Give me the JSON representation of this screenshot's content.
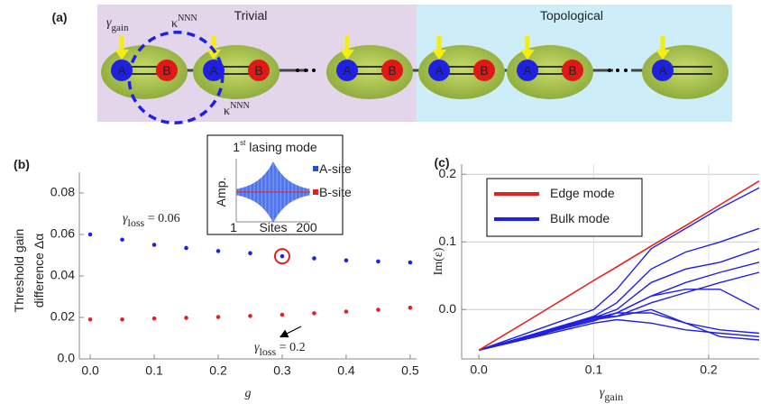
{
  "panel_a": {
    "panel_label": "(a)",
    "trivial": "Trivial",
    "topological": "Topological",
    "gamma": "γ",
    "gamma_sub": "gain",
    "kappa": "κ",
    "kappa_sup": "NNN",
    "site_a": "A",
    "site_b": "B"
  },
  "chart_data": [
    {
      "type": "scatter",
      "panel_label": "(b)",
      "y_label": [
        "Threshold gain",
        "difference Δα"
      ],
      "x_label": "g",
      "x": [
        0,
        0.05,
        0.1,
        0.15,
        0.2,
        0.25,
        0.3,
        0.35,
        0.4,
        0.45,
        0.5
      ],
      "series": [
        {
          "color": "#1f1fe6",
          "values": [
            0.06,
            0.0575,
            0.055,
            0.0535,
            0.052,
            0.051,
            0.0495,
            0.0485,
            0.0475,
            0.047,
            0.0465
          ]
        },
        {
          "color": "#e62020",
          "values": [
            0.019,
            0.019,
            0.0195,
            0.0198,
            0.0202,
            0.0207,
            0.0213,
            0.022,
            0.0228,
            0.0237,
            0.0247
          ]
        }
      ],
      "annotations": [
        {
          "symbol": "γ",
          "sub": "loss",
          "text": " = 0.06",
          "color": "#1f1fe6"
        },
        {
          "symbol": "γ",
          "sub": "loss",
          "text": " = 0.2",
          "color": "#e62020"
        }
      ],
      "xlim": [
        -0.017,
        0.51
      ],
      "ylim": [
        0,
        0.09
      ],
      "xticks": [
        {
          "value": 0,
          "label": "0.0"
        },
        0.1,
        0.2,
        0.3,
        0.4,
        0.5
      ],
      "yticks": [
        {
          "value": 0,
          "label": "0.0"
        },
        0.02,
        0.04,
        0.06,
        0.08
      ],
      "inset": {
        "title": "1",
        "title_sup": "st",
        "title_rest": " lasing mode",
        "y_label": "Amp.",
        "x_label": "Sites",
        "xticks": [
          1,
          200
        ],
        "series": [
          {
            "name": "A-site",
            "color": "#1f4fe6"
          },
          {
            "name": "B-site",
            "color": "#e62020"
          }
        ]
      }
    },
    {
      "type": "line",
      "panel_label": "(c)",
      "y_label": "Im(ε)",
      "x_label": "γ",
      "x_label_sub": "gain",
      "x": [
        0,
        0.05,
        0.1,
        0.12,
        0.15,
        0.18,
        0.21,
        0.244
      ],
      "series": [
        {
          "name": "Edge mode",
          "color": "#e62020",
          "values": [
            -0.06,
            -0.009,
            0.043,
            0.063,
            0.094,
            0.124,
            0.155,
            0.19
          ]
        },
        {
          "name": "Bulk mode",
          "color": "#1f1fe6",
          "lines": [
            [
              -0.06,
              -0.03,
              0.0,
              0.03,
              0.09,
              0.12,
              0.15,
              0.18
            ],
            [
              -0.06,
              -0.035,
              -0.01,
              0.01,
              0.06,
              0.085,
              0.1,
              0.12
            ],
            [
              -0.06,
              -0.036,
              -0.012,
              0.0,
              0.04,
              0.06,
              0.07,
              0.09
            ],
            [
              -0.06,
              -0.036,
              -0.013,
              -0.005,
              0.02,
              0.04,
              0.055,
              0.07
            ],
            [
              -0.06,
              -0.037,
              -0.015,
              -0.01,
              0.01,
              0.025,
              0.04,
              0.055
            ],
            [
              -0.06,
              -0.037,
              -0.015,
              -0.005,
              0.02,
              0.03,
              0.03,
              0.0
            ],
            [
              -0.06,
              -0.038,
              -0.017,
              -0.005,
              -0.005,
              -0.02,
              -0.03,
              -0.035
            ],
            [
              -0.06,
              -0.04,
              -0.01,
              -0.01,
              0.0,
              -0.02,
              -0.04,
              -0.045
            ],
            [
              -0.06,
              -0.04,
              -0.02,
              -0.015,
              -0.02,
              -0.03,
              -0.035,
              -0.04
            ]
          ]
        }
      ],
      "xlim": [
        -0.015,
        0.244
      ],
      "ylim": [
        -0.073,
        0.215
      ],
      "xticks": [
        {
          "value": 0,
          "label": "0.0"
        },
        0.1,
        0.2
      ],
      "yticks": [
        {
          "value": 0,
          "label": "0.0"
        },
        0.1,
        0.2
      ],
      "grid": true
    }
  ]
}
